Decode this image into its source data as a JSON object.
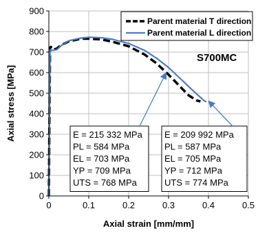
{
  "chart_data": {
    "type": "line",
    "xlabel": "Axial strain [mm/mm]",
    "ylabel": "Axial stress [MPa]",
    "xlim": [
      0,
      0.5
    ],
    "ylim": [
      0,
      900
    ],
    "x_ticks": [
      "0",
      "0.1",
      "0.2",
      "0.3",
      "0.4",
      "0.5"
    ],
    "y_ticks": [
      "0",
      "100",
      "200",
      "300",
      "400",
      "500",
      "600",
      "700",
      "800",
      "900"
    ],
    "grid": true,
    "legend_position": "top-right",
    "material_label": "S700MC",
    "series": [
      {
        "name": "Parent material T direction",
        "color": "#000000",
        "style": "dashed",
        "x": [
          0,
          0.003,
          0.005,
          0.01,
          0.02,
          0.03,
          0.05,
          0.08,
          0.1,
          0.13,
          0.16,
          0.2,
          0.24,
          0.27,
          0.3,
          0.33,
          0.35,
          0.37,
          0.38
        ],
        "y": [
          0,
          722,
          725,
          712,
          717,
          733,
          752,
          765,
          765,
          762,
          750,
          728,
          688,
          645,
          590,
          530,
          490,
          465,
          460
        ]
      },
      {
        "name": "Parent material L direction",
        "color": "#4a7bc7",
        "style": "solid",
        "x": [
          0,
          0.003,
          0.005,
          0.01,
          0.02,
          0.03,
          0.05,
          0.08,
          0.1,
          0.13,
          0.16,
          0.2,
          0.24,
          0.27,
          0.3,
          0.33,
          0.35,
          0.37,
          0.39,
          0.395
        ],
        "y": [
          0,
          710,
          712,
          708,
          712,
          730,
          755,
          768,
          772,
          770,
          762,
          742,
          708,
          670,
          625,
          570,
          533,
          497,
          462,
          458
        ]
      }
    ],
    "annotations": {
      "t_box": [
        "E = 215 332 MPa",
        "PL = 584 MPa",
        "EL = 703 MPa",
        "YP =  709 MPa",
        "UTS = 768 MPa"
      ],
      "l_box": [
        "E = 209 992 MPa",
        "PL = 587 MPa",
        "EL = 705 MPa",
        "YP =  712 MPa",
        "UTS = 774 MPa"
      ]
    }
  }
}
